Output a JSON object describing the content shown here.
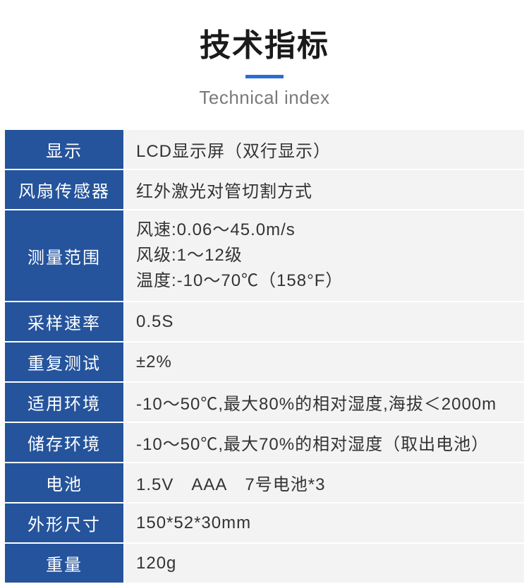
{
  "header": {
    "title_zh": "技术指标",
    "title_en": "Technical index"
  },
  "colors": {
    "label_bg": "#25549c",
    "label_text": "#ffffff",
    "value_bg": "#f3f3f3",
    "value_text": "#333333",
    "underline": "#2b6cd4",
    "border": "#ffffff"
  },
  "typography": {
    "title_zh_fontsize": 44,
    "title_en_fontsize": 26,
    "table_fontsize": 24
  },
  "table": {
    "label_col_width": 170,
    "rows": [
      {
        "label": "显示",
        "value": "LCD显示屏（双行显示）"
      },
      {
        "label": "风扇传感器",
        "value": "红外激光对管切割方式"
      },
      {
        "label": "测量范围",
        "value_lines": [
          "风速:0.06～45.0m/s",
          "风级:1～12级",
          "温度:-10～70℃（158°F）"
        ]
      },
      {
        "label": "采样速率",
        "value": "0.5S"
      },
      {
        "label": "重复测试",
        "value": "±2%"
      },
      {
        "label": "适用环境",
        "value": "-10～50℃,最大80%的相对湿度,海拔＜2000m"
      },
      {
        "label": "储存环境",
        "value": "-10～50℃,最大70%的相对湿度（取出电池）"
      },
      {
        "label": "电池",
        "value": "1.5V AAA 7号电池*3"
      },
      {
        "label": "外形尺寸",
        "value": "150*52*30mm"
      },
      {
        "label": "重量",
        "value": "120g"
      }
    ]
  }
}
